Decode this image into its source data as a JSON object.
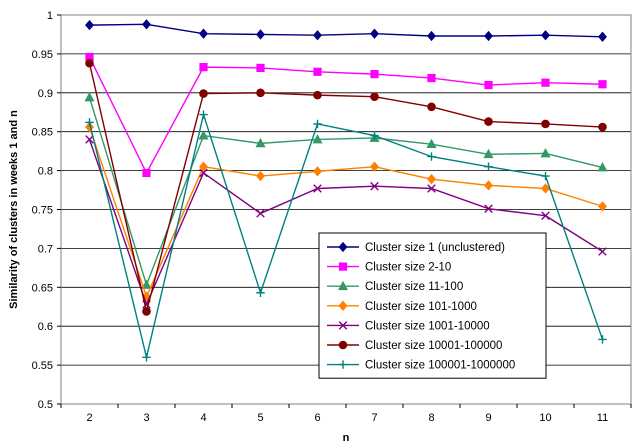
{
  "chart_data": {
    "type": "line",
    "title": "",
    "xlabel": "n",
    "ylabel": "Similarity of clusters in weeks 1 and n",
    "x": [
      2,
      3,
      4,
      5,
      6,
      7,
      8,
      9,
      10,
      11
    ],
    "xlim": [
      1.5,
      11.5
    ],
    "ylim": [
      0.5,
      1
    ],
    "yticks": [
      0.5,
      0.55,
      0.6,
      0.65,
      0.7,
      0.75,
      0.8,
      0.85,
      0.9,
      0.95,
      1
    ],
    "ytick_labels": [
      "0.5",
      "0.55",
      "0.6",
      "0.65",
      "0.7",
      "0.75",
      "0.8",
      "0.85",
      "0.9",
      "0.95",
      "1"
    ],
    "xtick_labels": [
      "2",
      "3",
      "4",
      "5",
      "6",
      "7",
      "8",
      "9",
      "10",
      "11"
    ],
    "grid": "horizontal",
    "legend_position": "bottom-right",
    "series": [
      {
        "name": "Cluster size 1 (unclustered)",
        "color": "#000080",
        "marker": "diamond",
        "values": [
          0.987,
          0.988,
          0.976,
          0.975,
          0.974,
          0.976,
          0.973,
          0.973,
          0.974,
          0.972
        ]
      },
      {
        "name": "Cluster size 2-10",
        "color": "#ff00ff",
        "marker": "square",
        "values": [
          0.946,
          0.797,
          0.933,
          0.932,
          0.927,
          0.924,
          0.919,
          0.91,
          0.913,
          0.911
        ]
      },
      {
        "name": "Cluster size 11-100",
        "color": "#339966",
        "marker": "triangle",
        "values": [
          0.894,
          0.653,
          0.845,
          0.835,
          0.84,
          0.842,
          0.834,
          0.821,
          0.822,
          0.804
        ]
      },
      {
        "name": "Cluster size 101-1000",
        "color": "#ff8000",
        "marker": "diamond",
        "values": [
          0.856,
          0.638,
          0.805,
          0.793,
          0.799,
          0.805,
          0.789,
          0.781,
          0.777,
          0.754
        ]
      },
      {
        "name": "Cluster size 1001-10000",
        "color": "#800080",
        "marker": "x",
        "values": [
          0.84,
          0.628,
          0.797,
          0.745,
          0.777,
          0.78,
          0.777,
          0.751,
          0.742,
          0.696
        ]
      },
      {
        "name": "Cluster size 10001-100000",
        "color": "#800000",
        "marker": "circle",
        "values": [
          0.938,
          0.619,
          0.899,
          0.9,
          0.897,
          0.895,
          0.882,
          0.863,
          0.86,
          0.856
        ]
      },
      {
        "name": "Cluster size 100001-1000000",
        "color": "#008080",
        "marker": "plus",
        "values": [
          0.862,
          0.56,
          0.872,
          0.643,
          0.86,
          0.845,
          0.818,
          0.805,
          0.793,
          0.583
        ]
      }
    ]
  }
}
